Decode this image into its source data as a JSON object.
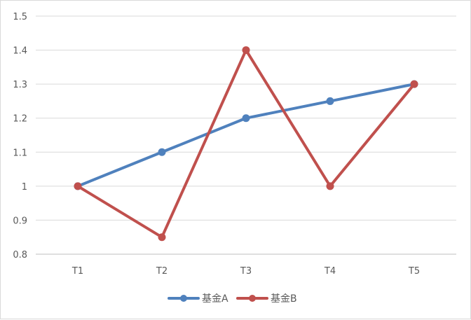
{
  "chart_data": {
    "type": "line",
    "categories": [
      "T1",
      "T2",
      "T3",
      "T4",
      "T5"
    ],
    "series": [
      {
        "name": "基金A",
        "values": [
          1.0,
          1.1,
          1.2,
          1.25,
          1.3
        ],
        "color": "#4f81bd"
      },
      {
        "name": "基金B",
        "values": [
          1.0,
          0.85,
          1.4,
          1.0,
          1.3
        ],
        "color": "#c0504d"
      }
    ],
    "y_ticks": [
      "0.8",
      "0.9",
      "1",
      "1.1",
      "1.2",
      "1.3",
      "1.4",
      "1.5"
    ],
    "ylim": [
      0.8,
      1.5
    ],
    "grid": true,
    "legend_position": "bottom",
    "title": "",
    "xlabel": "",
    "ylabel": "",
    "gridline_color": "#d9d9d9",
    "axis_color": "#bfbfbf"
  }
}
